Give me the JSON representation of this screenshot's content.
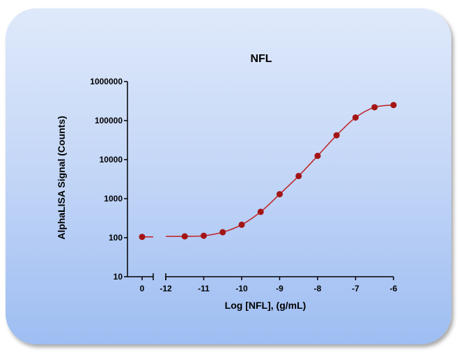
{
  "chart_data": {
    "type": "scatter",
    "title": "NFL",
    "xlabel": "Log [NFL], (g/mL)",
    "ylabel": "AlphaLISA Signal (Counts)",
    "y_scale": "log",
    "ylim": [
      10,
      1000000
    ],
    "x_broken_axis": true,
    "x_ticks_left": [
      "0"
    ],
    "x_ticks_right": [
      "-12",
      "-11",
      "-10",
      "-9",
      "-8",
      "-7",
      "-6"
    ],
    "xlim_right": [
      -12,
      -6
    ],
    "y_ticks": [
      "1000000",
      "100000",
      "10000",
      "1000",
      "100",
      "10"
    ],
    "marker_color": "#a31515",
    "curve_color": "#c0282d",
    "zero_point": {
      "x": 0,
      "y": 105
    },
    "series": [
      {
        "x": [
          -11.5,
          -11.0,
          -10.5,
          -10.0,
          -9.5,
          -9.0,
          -8.5,
          -8.0,
          -7.5,
          -7.0,
          -6.5,
          -6.0
        ],
        "y": [
          108,
          112,
          138,
          215,
          460,
          1300,
          3800,
          12500,
          42000,
          120000,
          220000,
          250000
        ]
      }
    ]
  }
}
